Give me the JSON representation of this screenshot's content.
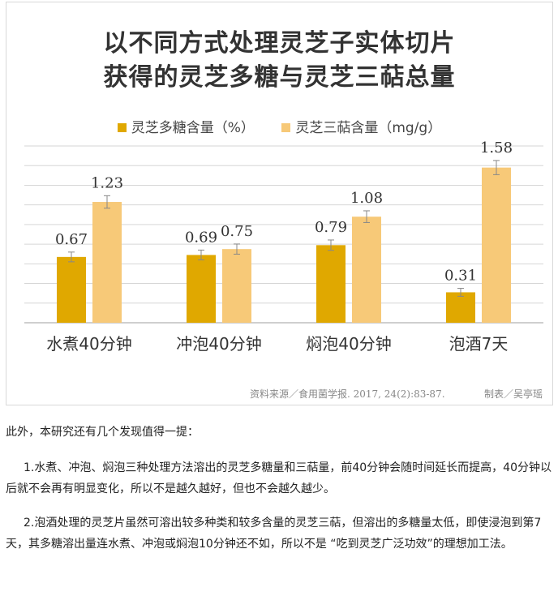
{
  "chart_data": {
    "type": "bar",
    "title_lines": [
      "以不同方式处理灵芝子实体切片",
      "获得的灵芝多糖与灵芝三萜总量"
    ],
    "categories": [
      "水煮40分钟",
      "冲泡40分钟",
      "焖泡40分钟",
      "泡酒7天"
    ],
    "series": [
      {
        "name": "灵芝多糖含量（%）",
        "values": [
          0.67,
          0.69,
          0.79,
          0.31
        ],
        "labels": [
          "0.67",
          "0.69",
          "0.79",
          "0.31"
        ],
        "color": "#e0a800"
      },
      {
        "name": "灵芝三萜含量（mg/g）",
        "values": [
          1.23,
          0.75,
          1.08,
          1.58
        ],
        "labels": [
          "1.23",
          "0.75",
          "1.08",
          "1.58"
        ],
        "color": "#f7c978"
      }
    ],
    "ylim": [
      0,
      1.8
    ],
    "grid": true,
    "legend_position": "top",
    "error_bars": true,
    "source": "资料来源／食用菌学报. 2017, 24(2):83-87.",
    "maker": "制表／吴亭瑶"
  },
  "article": {
    "intro": "此外，本研究还有几个发现值得一提：",
    "point1": "1.水煮、冲泡、焖泡三种处理方法溶出的灵芝多糖量和三萜量，前40分钟会随时间延长而提高，40分钟以后就不会再有明显变化，所以不是越久越好，但也不会越久越少。",
    "point2": "2.泡酒处理的灵芝片虽然可溶出较多种类和较多含量的灵芝三萜，但溶出的多糖量太低，即使浸泡到第7天，其多糖溶出量连水煮、冲泡或焖泡10分钟还不如，所以不是 “吃到灵芝广泛功效”的理想加工法。"
  }
}
